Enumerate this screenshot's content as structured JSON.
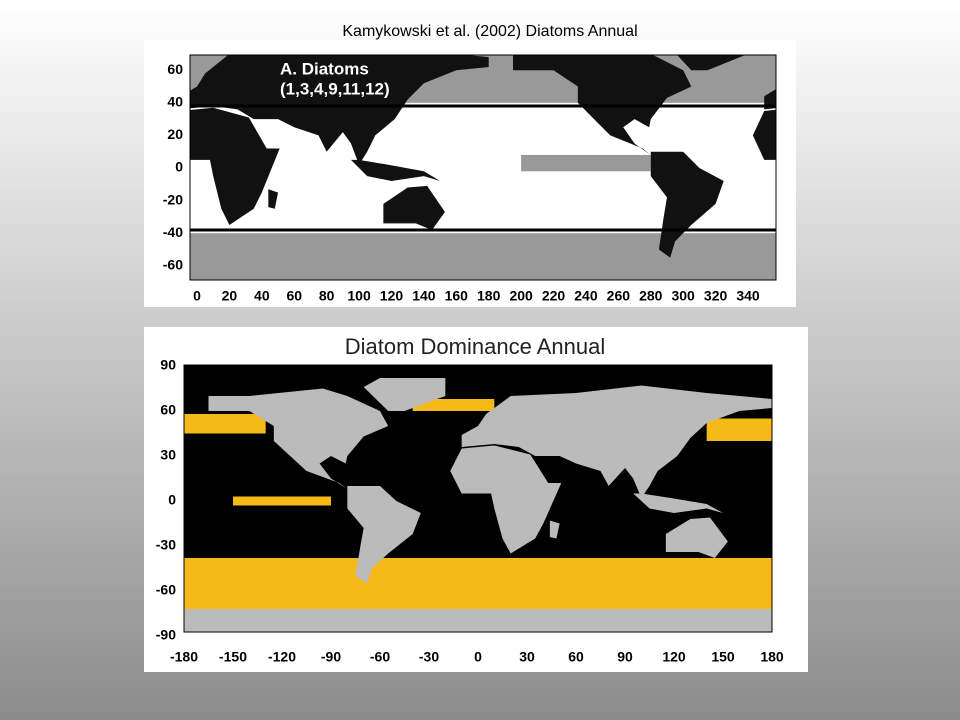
{
  "slide": {
    "title": "Kamykowski et al. (2002) Diatoms Annual"
  },
  "maps": [
    {
      "label": [
        "A. Diatoms",
        "(1,3,4,9,11,12)"
      ],
      "yticks": [
        60,
        40,
        20,
        0,
        -20,
        -40,
        -60
      ],
      "xticks": [
        0,
        20,
        40,
        60,
        80,
        100,
        120,
        140,
        160,
        180,
        200,
        220,
        240,
        260,
        280,
        300,
        320,
        340
      ]
    },
    {
      "title": "Diatom Dominance Annual",
      "yticks": [
        90,
        60,
        30,
        0,
        -30,
        -60,
        -90
      ],
      "xticks": [
        -180,
        -150,
        -120,
        -90,
        -60,
        -30,
        0,
        30,
        60,
        90,
        120,
        150,
        180
      ]
    }
  ]
}
